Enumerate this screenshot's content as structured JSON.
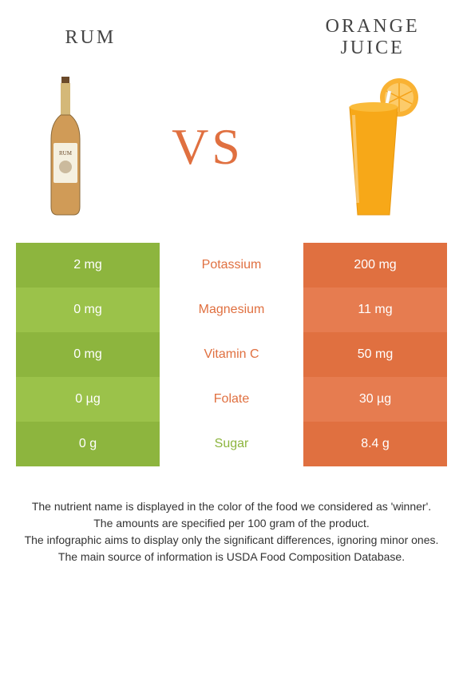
{
  "header": {
    "left_title": "RUM",
    "right_title": "ORANGE JUICE",
    "title_fontsize": 24,
    "title_color": "#444444",
    "title_letterspacing": 3
  },
  "vs": {
    "text": "VS",
    "fontsize": 64,
    "color": "#e07040"
  },
  "colors": {
    "left_bar": "#8db53e",
    "right_bar": "#e07040",
    "left_bar_alt": "#9bc24a",
    "right_bar_alt": "#e67c50",
    "left_text": "#ffffff",
    "right_text": "#ffffff",
    "nutrient_winner_color": "#e07040",
    "sugar_color": "#8db53e",
    "rum_liquid": "#c8893a",
    "rum_bottle_glass": "#e8d4a8",
    "oj_liquid": "#f7a818",
    "orange_slice": "#f9b233"
  },
  "rows": [
    {
      "label": "Potassium",
      "left": "2 mg",
      "right": "200 mg",
      "label_color": "#e07040",
      "shade": false
    },
    {
      "label": "Magnesium",
      "left": "0 mg",
      "right": "11 mg",
      "label_color": "#e07040",
      "shade": true
    },
    {
      "label": "Vitamin C",
      "left": "0 mg",
      "right": "50 mg",
      "label_color": "#e07040",
      "shade": false
    },
    {
      "label": "Folate",
      "left": "0 µg",
      "right": "30 µg",
      "label_color": "#e07040",
      "shade": true
    },
    {
      "label": "Sugar",
      "left": "0 g",
      "right": "8.4 g",
      "label_color": "#8db53e",
      "shade": false
    }
  ],
  "footnotes": {
    "line1": "The nutrient name is displayed in the color of the food we considered as 'winner'.",
    "line2": "The amounts are specified per 100 gram of the product.",
    "line3": "The infographic aims to display only the significant differences, ignoring minor ones.",
    "line4": "The main source of information is USDA Food Composition Database.",
    "fontsize": 14,
    "color": "#333333"
  }
}
